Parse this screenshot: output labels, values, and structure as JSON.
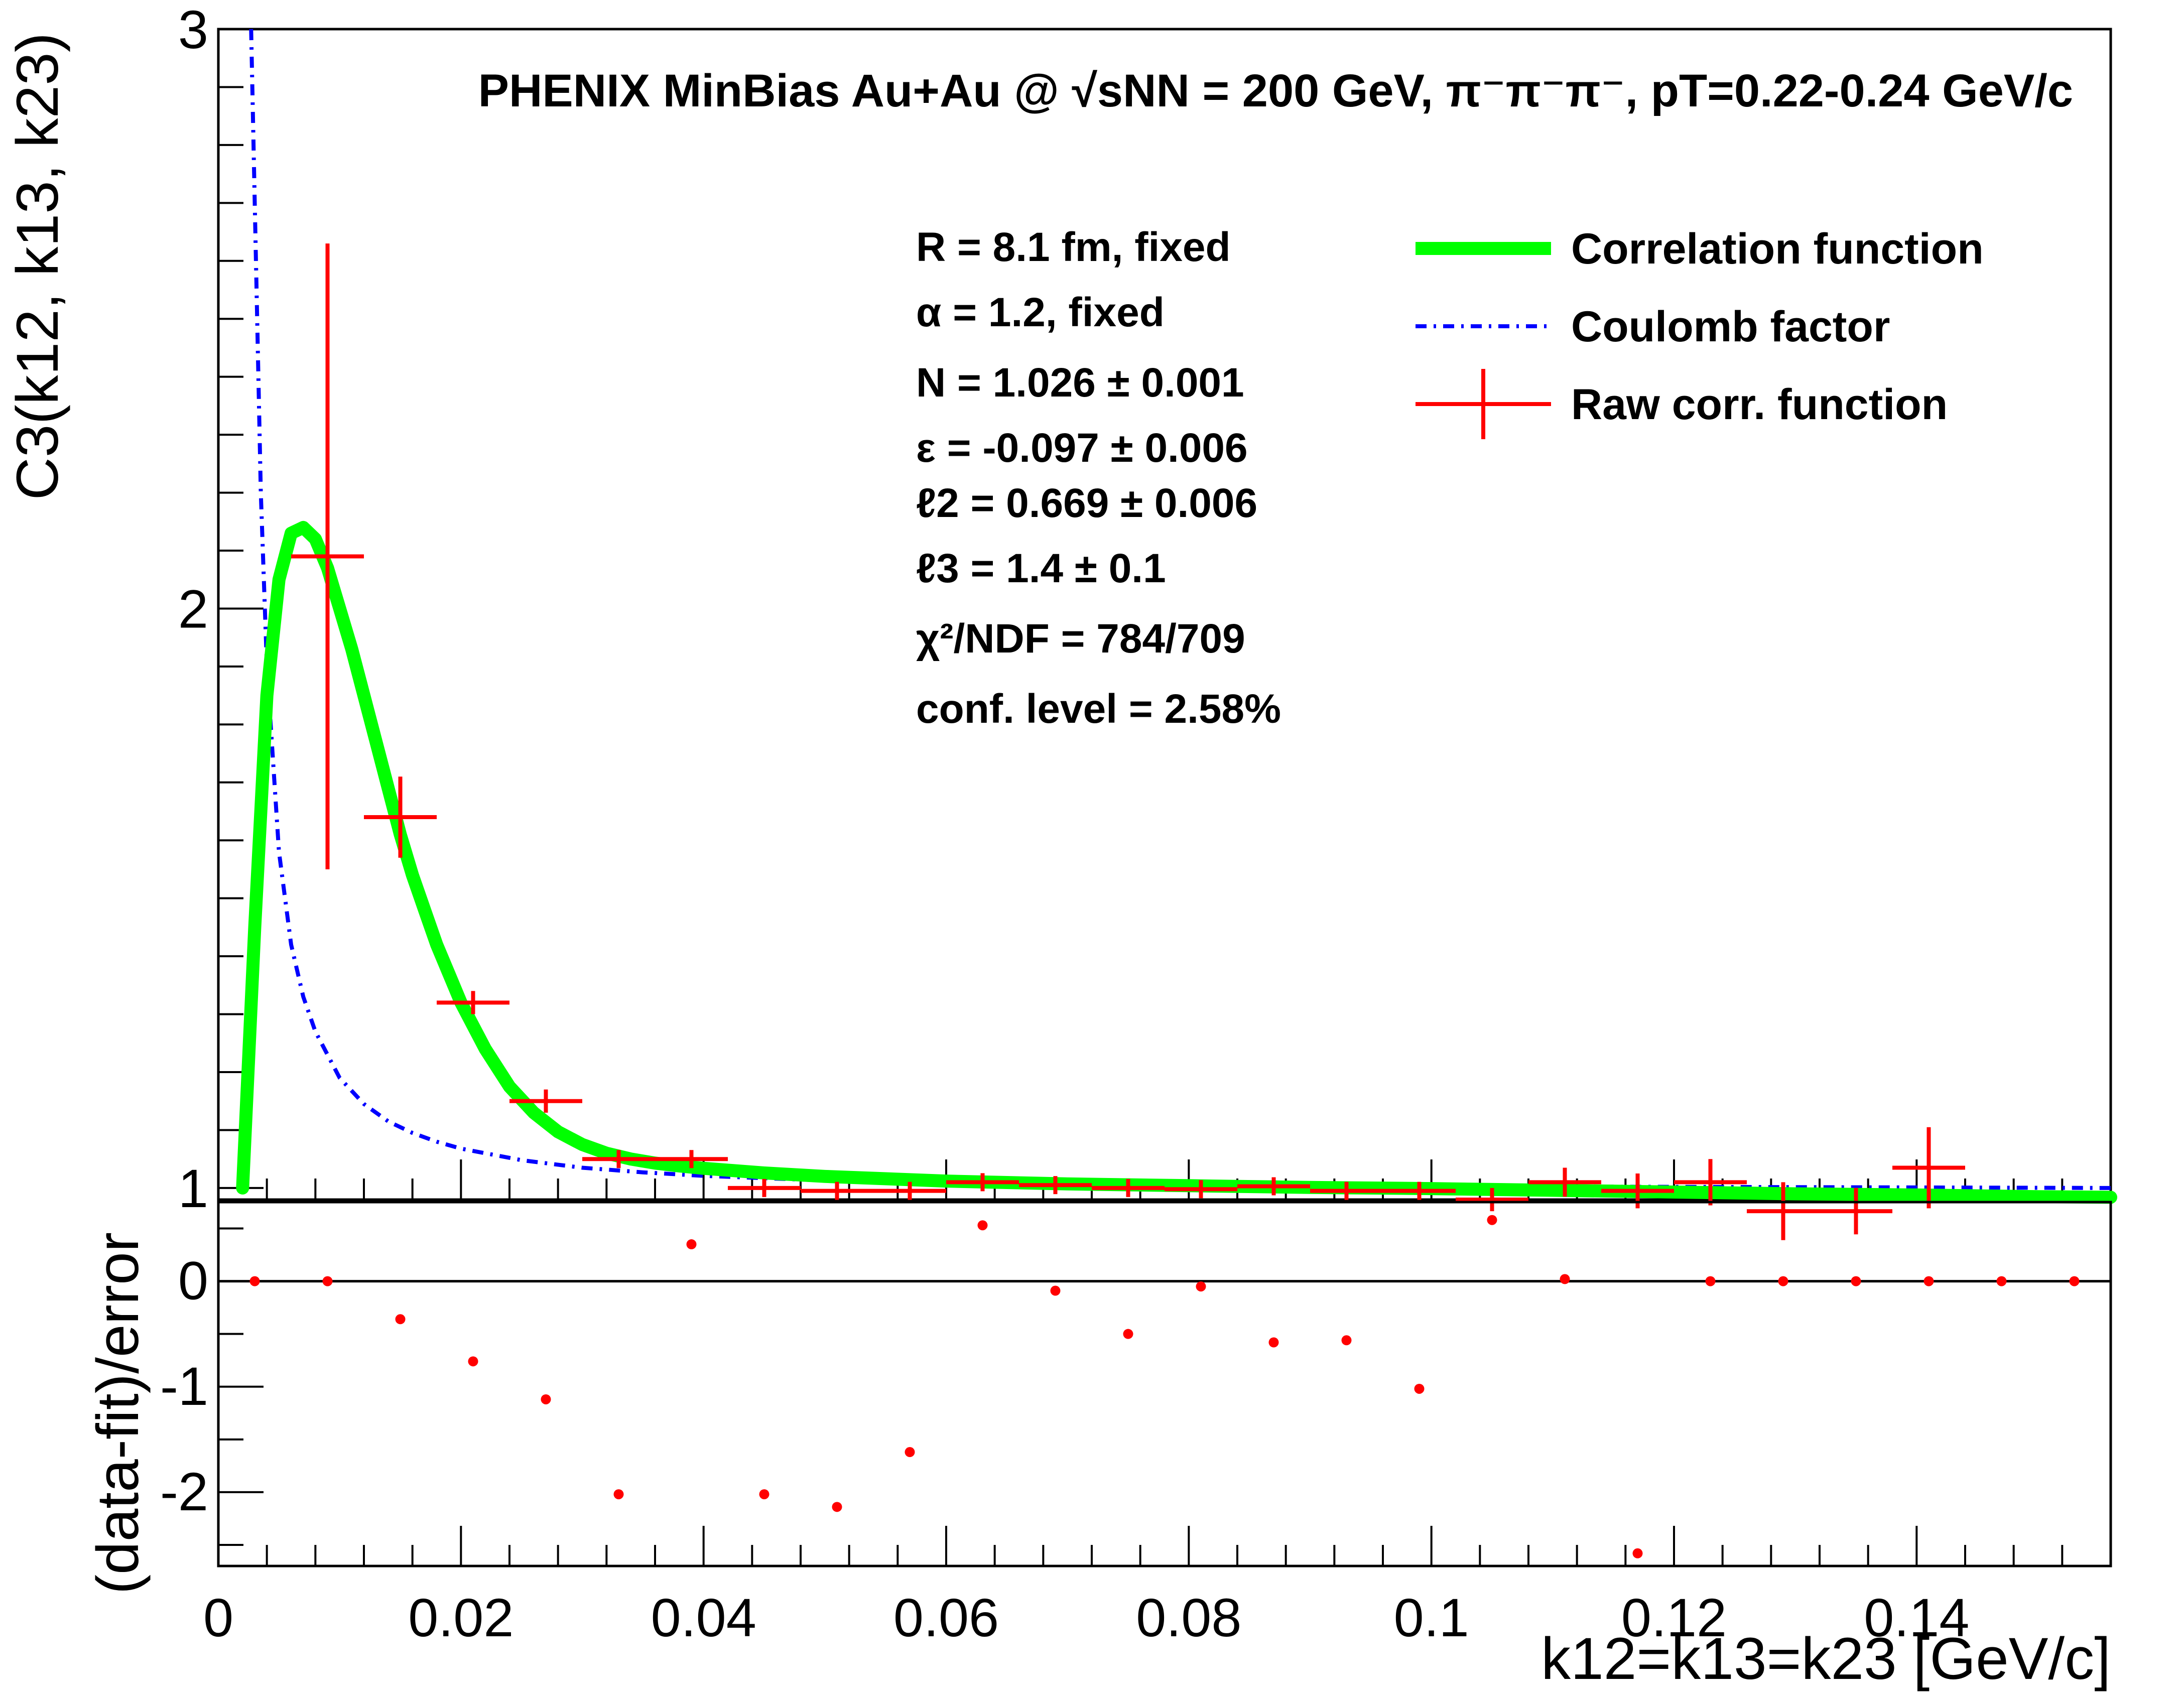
{
  "chart_data": [
    {
      "type": "scatter",
      "panel": "top",
      "title": "PHENIX MinBias Au+Au @ √sNN = 200 GeV, π⁻π⁻π⁻, pT=0.22-0.24 GeV/c",
      "xlabel": "",
      "ylabel": "C3(k12, k13, k23)",
      "xlim": [
        0,
        0.156
      ],
      "ylim": [
        0.98,
        3.0
      ],
      "yticks": [
        1,
        2,
        3
      ],
      "legend_position": "top-right",
      "info_lines": [
        "R = 8.1 fm, fixed",
        "α = 1.2, fixed",
        "N = 1.026 ± 0.001",
        "ε = -0.097 ± 0.006",
        "ℓ2 = 0.669 ± 0.006",
        "ℓ3 = 1.4 ± 0.1",
        "χ²/NDF = 784/709",
        "conf. level = 2.58%"
      ],
      "series": [
        {
          "name": "Correlation function",
          "kind": "curve",
          "color": "#00ff00",
          "x": [
            0.002,
            0.003,
            0.004,
            0.005,
            0.006,
            0.007,
            0.008,
            0.009,
            0.01,
            0.011,
            0.012,
            0.013,
            0.014,
            0.015,
            0.016,
            0.017,
            0.018,
            0.019,
            0.02,
            0.022,
            0.024,
            0.026,
            0.028,
            0.03,
            0.032,
            0.034,
            0.036,
            0.038,
            0.04,
            0.045,
            0.05,
            0.06,
            0.07,
            0.08,
            0.09,
            0.1,
            0.11,
            0.12,
            0.13,
            0.14,
            0.15,
            0.156
          ],
          "y": [
            1.0,
            1.45,
            1.85,
            2.05,
            2.13,
            2.14,
            2.12,
            2.07,
            2.0,
            1.93,
            1.85,
            1.77,
            1.69,
            1.61,
            1.54,
            1.48,
            1.42,
            1.37,
            1.32,
            1.24,
            1.175,
            1.13,
            1.097,
            1.075,
            1.06,
            1.05,
            1.043,
            1.038,
            1.034,
            1.026,
            1.02,
            1.012,
            1.007,
            1.004,
            1.001,
            0.999,
            0.996,
            0.993,
            0.99,
            0.988,
            0.985,
            0.984
          ]
        },
        {
          "name": "Coulomb factor",
          "kind": "curve",
          "color": "#0000ff",
          "x": [
            0.0027,
            0.003,
            0.0035,
            0.004,
            0.005,
            0.006,
            0.007,
            0.008,
            0.01,
            0.012,
            0.014,
            0.016,
            0.018,
            0.02,
            0.025,
            0.03,
            0.035,
            0.04,
            0.05,
            0.06,
            0.08,
            0.1,
            0.12,
            0.14,
            0.156
          ],
          "y": [
            3.0,
            2.7,
            2.2,
            1.9,
            1.58,
            1.42,
            1.33,
            1.27,
            1.19,
            1.145,
            1.115,
            1.095,
            1.08,
            1.068,
            1.048,
            1.035,
            1.027,
            1.021,
            1.013,
            1.009,
            1.005,
            1.003,
            1.002,
            1.001,
            1.0
          ]
        },
        {
          "name": "Raw corr. function",
          "kind": "points",
          "color": "#ff0000",
          "x": [
            0.009,
            0.015,
            0.021,
            0.027,
            0.033,
            0.039,
            0.045,
            0.051,
            0.057,
            0.063,
            0.069,
            0.075,
            0.081,
            0.087,
            0.093,
            0.099,
            0.105,
            0.111,
            0.117,
            0.123,
            0.129,
            0.135,
            0.141
          ],
          "y": [
            2.09,
            1.64,
            1.32,
            1.15,
            1.05,
            1.05,
            1.0,
            0.995,
            0.995,
            1.01,
            1.005,
            1.0,
            0.998,
            1.003,
            0.995,
            0.995,
            0.98,
            1.01,
            0.995,
            1.01,
            0.96,
            0.96,
            1.035
          ],
          "yerr": [
            0.54,
            0.07,
            0.02,
            0.02,
            0.01,
            0.01,
            0.01,
            0.01,
            0.01,
            0.01,
            0.01,
            0.01,
            0.01,
            0.01,
            0.01,
            0.015,
            0.02,
            0.025,
            0.03,
            0.04,
            0.05,
            0.04,
            0.07
          ],
          "xerr": 0.003
        }
      ]
    },
    {
      "type": "scatter",
      "panel": "bottom",
      "title": "",
      "xlabel": "k12=k13=k23 [GeV/c]",
      "ylabel": "(data-fit)/error",
      "xlim": [
        0,
        0.156
      ],
      "ylim": [
        -2.7,
        0.75
      ],
      "xticks": [
        0,
        0.02,
        0.04,
        0.06,
        0.08,
        0.1,
        0.12,
        0.14
      ],
      "yticks": [
        0,
        -1,
        -2
      ],
      "reference_line": 0,
      "series": [
        {
          "name": "",
          "kind": "points",
          "color": "#ff0000",
          "x": [
            0.003,
            0.009,
            0.015,
            0.021,
            0.027,
            0.033,
            0.039,
            0.045,
            0.051,
            0.057,
            0.063,
            0.069,
            0.075,
            0.081,
            0.087,
            0.093,
            0.099,
            0.105,
            0.111,
            0.117,
            0.123,
            0.129,
            0.135,
            0.141,
            0.147,
            0.153
          ],
          "y": [
            0.0,
            0.0,
            -0.36,
            -0.76,
            -1.12,
            -2.02,
            0.35,
            -2.02,
            -2.14,
            -1.62,
            0.53,
            -0.09,
            -0.5,
            -0.05,
            -0.58,
            -0.56,
            -1.02,
            0.58,
            0.02,
            -2.58,
            0.0,
            0.0,
            0.0,
            0.0,
            0.0,
            0.0
          ]
        }
      ]
    }
  ]
}
